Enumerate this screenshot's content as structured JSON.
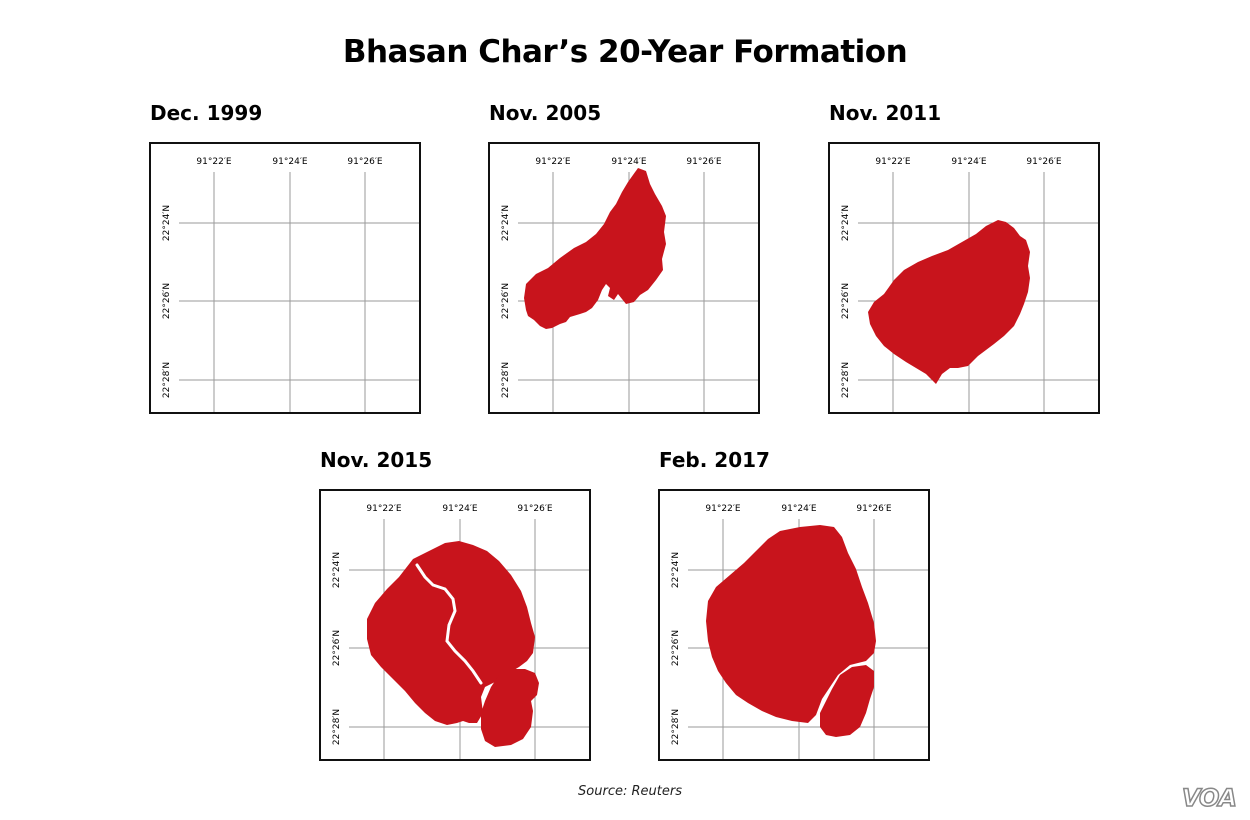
{
  "title": "Bhasan Char’s 20-Year Formation",
  "grid_labels": {
    "longitudes": [
      "91°22′E",
      "91°24′E",
      "91°26′E"
    ],
    "latitudes": [
      "22°24′N",
      "22°26′N",
      "22°28′N"
    ]
  },
  "panels": [
    {
      "label": "Dec. 1999",
      "shape": "none"
    },
    {
      "label": "Nov. 2005",
      "shape": "2005"
    },
    {
      "label": "Nov. 2011",
      "shape": "2011"
    },
    {
      "label": "Nov. 2015",
      "shape": "2015"
    },
    {
      "label": "Feb. 2017",
      "shape": "2017"
    }
  ],
  "colors": {
    "land": "#c8141c",
    "grid": "#9a9a9a",
    "frame": "#111111"
  },
  "source": "Source: Reuters",
  "logo": "VOA"
}
